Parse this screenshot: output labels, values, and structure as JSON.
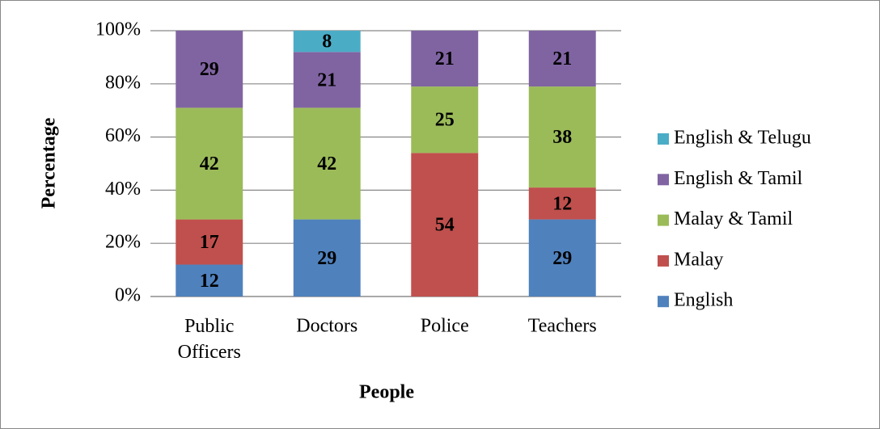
{
  "chart_data": {
    "type": "stacked_bar",
    "categories": [
      "Public Officers",
      "Doctors",
      "Police",
      "Teachers"
    ],
    "series": [
      {
        "name": "English",
        "color": "#4f81bd",
        "values": [
          12,
          29,
          0,
          29
        ]
      },
      {
        "name": "Malay",
        "color": "#c0504d",
        "values": [
          17,
          0,
          54,
          12
        ]
      },
      {
        "name": "Malay & Tamil",
        "color": "#9bbb59",
        "values": [
          42,
          42,
          25,
          38
        ]
      },
      {
        "name": "English & Tamil",
        "color": "#8064a2",
        "values": [
          29,
          21,
          21,
          21
        ]
      },
      {
        "name": "English & Telugu",
        "color": "#4bacc6",
        "values": [
          0,
          8,
          0,
          0
        ]
      }
    ],
    "x_label": "People",
    "y_label": "Percentage",
    "ylim": [
      0,
      100
    ],
    "yticks": [
      {
        "value": 0,
        "label": "0%"
      },
      {
        "value": 20,
        "label": "20%"
      },
      {
        "value": 40,
        "label": "40%"
      },
      {
        "value": 60,
        "label": "60%"
      },
      {
        "value": 80,
        "label": "80%"
      },
      {
        "value": 100,
        "label": "100%"
      }
    ],
    "grid": true,
    "legend": "right"
  }
}
